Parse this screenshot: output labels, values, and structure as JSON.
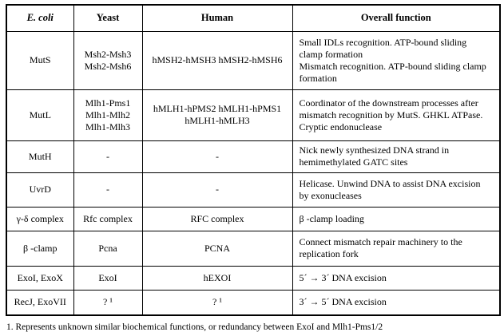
{
  "table": {
    "headers": [
      "E. coli",
      "Yeast",
      "Human",
      "Overall function"
    ],
    "rows": [
      {
        "ecoli": [
          "MutS"
        ],
        "yeast": [
          "Msh2-Msh3",
          "Msh2-Msh6"
        ],
        "human": [
          "hMSH2-hMSH3 hMSH2-hMSH6"
        ],
        "function": [
          "Small IDLs recognition. ATP-bound sliding clamp formation",
          "Mismatch recognition. ATP-bound sliding clamp formation"
        ]
      },
      {
        "ecoli": [
          "MutL"
        ],
        "yeast": [
          "Mlh1-Pms1",
          "Mlh1-Mlh2",
          "Mlh1-Mlh3"
        ],
        "human": [
          "hMLH1-hPMS2 hMLH1-hPMS1",
          "hMLH1-hMLH3"
        ],
        "function": [
          "Coordinator of the downstream processes after mismatch recognition by MutS. GHKL ATPase. Cryptic endonuclease"
        ]
      },
      {
        "ecoli": [
          "MutH"
        ],
        "yeast": [
          "-"
        ],
        "human": [
          "-"
        ],
        "function": [
          "Nick newly synthesized DNA strand in hemimethylated GATC sites"
        ]
      },
      {
        "ecoli": [
          "UvrD"
        ],
        "yeast": [
          "-"
        ],
        "human": [
          "-"
        ],
        "function": [
          "Helicase. Unwind DNA to assist DNA excision by exonucleases"
        ]
      },
      {
        "ecoli": [
          "γ-δ complex"
        ],
        "yeast": [
          "Rfc complex"
        ],
        "human": [
          "RFC complex"
        ],
        "function": [
          "β -clamp loading"
        ]
      },
      {
        "ecoli": [
          "β -clamp"
        ],
        "yeast": [
          "Pcna"
        ],
        "human": [
          "PCNA"
        ],
        "function": [
          "Connect mismatch repair machinery to the replication fork"
        ]
      },
      {
        "ecoli": [
          "ExoI, ExoX"
        ],
        "yeast": [
          "ExoI"
        ],
        "human": [
          "hEXOI"
        ],
        "function": [
          "5´ → 3´ DNA excision"
        ]
      },
      {
        "ecoli": [
          "RecJ, ExoVII"
        ],
        "yeast": [
          "? ¹"
        ],
        "human": [
          "? ¹"
        ],
        "function": [
          "3´ → 5´ DNA excision"
        ]
      }
    ]
  },
  "footnote": "1. Represents unknown similar biochemical functions, or redundancy between ExoI and Mlh1-Pms1/2",
  "colors": {
    "border": "#000000",
    "text": "#000000",
    "background": "#ffffff"
  }
}
